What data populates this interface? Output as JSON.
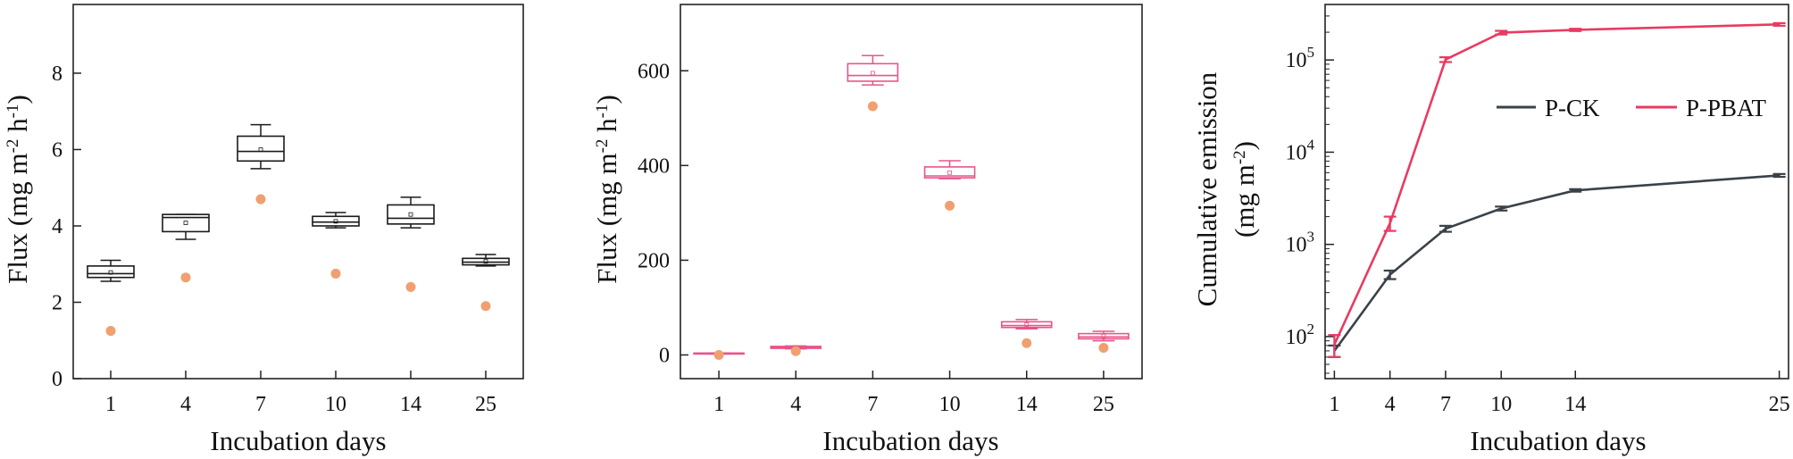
{
  "chart_data": [
    {
      "type": "box",
      "title": "",
      "xlabel": "Incubation days",
      "ylabel_main": "Flux (mg m",
      "ylabel_sup1": "-2",
      "ylabel_mid": " h",
      "ylabel_sup2": "-1",
      "ylabel_end": ")",
      "ylim": [
        0,
        9.8
      ],
      "yticks": [
        0,
        2,
        4,
        6,
        8
      ],
      "categories": [
        "1",
        "4",
        "7",
        "10",
        "14",
        "25"
      ],
      "box_color": "#1a1a1a",
      "outlier_color": "#f0a070",
      "boxes": [
        {
          "whisker_low": 2.55,
          "q1": 2.65,
          "median": 2.75,
          "q3": 2.95,
          "whisker_high": 3.1,
          "mean": 2.78,
          "outlier": 1.25
        },
        {
          "whisker_low": 3.65,
          "q1": 3.85,
          "median": 4.22,
          "q3": 4.3,
          "whisker_high": 4.3,
          "mean": 4.08,
          "outlier": 2.65
        },
        {
          "whisker_low": 5.5,
          "q1": 5.7,
          "median": 5.95,
          "q3": 6.35,
          "whisker_high": 6.65,
          "mean": 6.0,
          "outlier": 4.7
        },
        {
          "whisker_low": 3.95,
          "q1": 4.0,
          "median": 4.1,
          "q3": 4.25,
          "whisker_high": 4.35,
          "mean": 4.12,
          "outlier": 2.75
        },
        {
          "whisker_low": 3.95,
          "q1": 4.05,
          "median": 4.2,
          "q3": 4.55,
          "whisker_high": 4.75,
          "mean": 4.3,
          "outlier": 2.4
        },
        {
          "whisker_low": 2.95,
          "q1": 2.98,
          "median": 3.05,
          "q3": 3.15,
          "whisker_high": 3.25,
          "mean": 3.07,
          "outlier": 1.9
        }
      ]
    },
    {
      "type": "box",
      "title": "",
      "xlabel": "Incubation days",
      "ylabel_main": "Flux (mg m",
      "ylabel_sup1": "-2",
      "ylabel_mid": " h",
      "ylabel_sup2": "-1",
      "ylabel_end": ")",
      "ylim": [
        -50,
        740
      ],
      "yticks": [
        0,
        200,
        400,
        600
      ],
      "categories": [
        "1",
        "4",
        "7",
        "10",
        "14",
        "25"
      ],
      "box_color": "#e8558a",
      "outlier_color": "#f0a070",
      "boxes": [
        {
          "whisker_low": 2,
          "q1": 2,
          "median": 3,
          "q3": 4,
          "whisker_high": 4,
          "mean": 3,
          "outlier": 0
        },
        {
          "whisker_low": 13,
          "q1": 14,
          "median": 16,
          "q3": 18,
          "whisker_high": 19,
          "mean": 16,
          "outlier": 8
        },
        {
          "whisker_low": 570,
          "q1": 578,
          "median": 590,
          "q3": 615,
          "whisker_high": 632,
          "mean": 595,
          "outlier": 525
        },
        {
          "whisker_low": 372,
          "q1": 374,
          "median": 378,
          "q3": 397,
          "whisker_high": 410,
          "mean": 385,
          "outlier": 315
        },
        {
          "whisker_low": 55,
          "q1": 58,
          "median": 62,
          "q3": 70,
          "whisker_high": 75,
          "mean": 64,
          "outlier": 25
        },
        {
          "whisker_low": 30,
          "q1": 34,
          "median": 38,
          "q3": 45,
          "whisker_high": 50,
          "mean": 40,
          "outlier": 15
        }
      ]
    },
    {
      "type": "line",
      "title": "",
      "xlabel": "Incubation days",
      "ylabel_line1": "Cumulative emission",
      "ylabel_line2_main": "(mg m",
      "ylabel_line2_sup": "-2",
      "ylabel_line2_end": ")",
      "yscale": "log",
      "ylim": [
        35,
        400000
      ],
      "yticks": [
        {
          "value": 100,
          "base": "10",
          "exp": "2"
        },
        {
          "value": 1000,
          "base": "10",
          "exp": "3"
        },
        {
          "value": 10000,
          "base": "10",
          "exp": "4"
        },
        {
          "value": 100000,
          "base": "10",
          "exp": "5"
        }
      ],
      "xlim": [
        0.5,
        25.5
      ],
      "xticks": [
        1,
        4,
        7,
        10,
        14,
        25
      ],
      "x": [
        1,
        4,
        7,
        10,
        14,
        25
      ],
      "legend_position": "top-right",
      "series": [
        {
          "name": "P-CK",
          "color": "#3a4249",
          "values": [
            70,
            470,
            1480,
            2450,
            3850,
            5600
          ],
          "err": [
            10,
            50,
            110,
            120,
            120,
            200
          ]
        },
        {
          "name": "P-PBAT",
          "color": "#e83b62",
          "values": [
            82,
            1700,
            101000,
            198000,
            212000,
            243000
          ],
          "err": [
            22,
            300,
            6000,
            9000,
            6000,
            8000
          ]
        }
      ]
    }
  ]
}
